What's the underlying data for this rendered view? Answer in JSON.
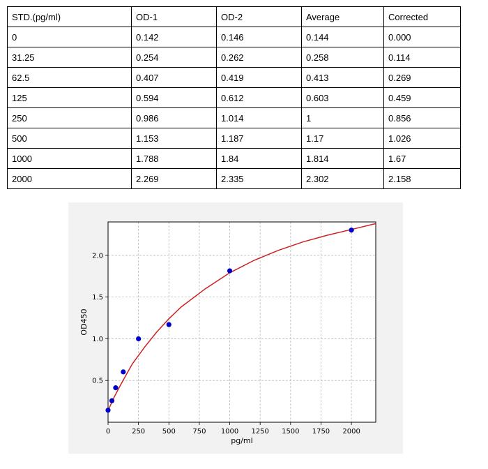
{
  "table": {
    "headers": [
      "STD.(pg/ml)",
      "OD-1",
      "OD-2",
      "Average",
      "Corrected"
    ],
    "rows": [
      [
        "0",
        "0.142",
        "0.146",
        "0.144",
        "0.000"
      ],
      [
        "31.25",
        "0.254",
        "0.262",
        "0.258",
        "0.114"
      ],
      [
        "62.5",
        "0.407",
        "0.419",
        "0.413",
        "0.269"
      ],
      [
        "125",
        "0.594",
        "0.612",
        "0.603",
        "0.459"
      ],
      [
        "250",
        "0.986",
        "1.014",
        "1",
        "0.856"
      ],
      [
        "500",
        "1.153",
        "1.187",
        "1.17",
        "1.026"
      ],
      [
        "1000",
        "1.788",
        "1.84",
        "1.814",
        "1.67"
      ],
      [
        "2000",
        "2.269",
        "2.335",
        "2.302",
        "2.158"
      ]
    ]
  },
  "chart_data": {
    "type": "scatter",
    "title": "",
    "xlabel": "pg/ml",
    "ylabel": "OD450",
    "xlim": [
      0,
      2200
    ],
    "ylim": [
      0,
      2.4
    ],
    "xticks": [
      0,
      250,
      500,
      750,
      1000,
      1250,
      1500,
      1750,
      2000
    ],
    "yticks": [
      0.5,
      1.0,
      1.5,
      2.0
    ],
    "xtick_labels": [
      "0",
      "250",
      "500",
      "750",
      "1000",
      "1250",
      "1500",
      "1750",
      "2000"
    ],
    "ytick_labels": [
      "0.5",
      "1.0",
      "1.5",
      "2.0"
    ],
    "grid": true,
    "colors": {
      "points": "#0000cc",
      "curve": "#cc2222",
      "grid": "#bbbbbb"
    },
    "points": {
      "x": [
        0,
        31.25,
        62.5,
        125,
        250,
        500,
        1000,
        2000
      ],
      "y": [
        0.144,
        0.258,
        0.413,
        0.603,
        1.0,
        1.17,
        1.814,
        2.302
      ]
    },
    "fit_curve": {
      "x": [
        0,
        25,
        50,
        100,
        150,
        200,
        300,
        400,
        500,
        600,
        800,
        1000,
        1200,
        1400,
        1600,
        1800,
        2000,
        2200
      ],
      "y": [
        0.144,
        0.22,
        0.3,
        0.44,
        0.57,
        0.7,
        0.9,
        1.08,
        1.24,
        1.38,
        1.6,
        1.79,
        1.94,
        2.06,
        2.16,
        2.24,
        2.31,
        2.38
      ]
    }
  }
}
